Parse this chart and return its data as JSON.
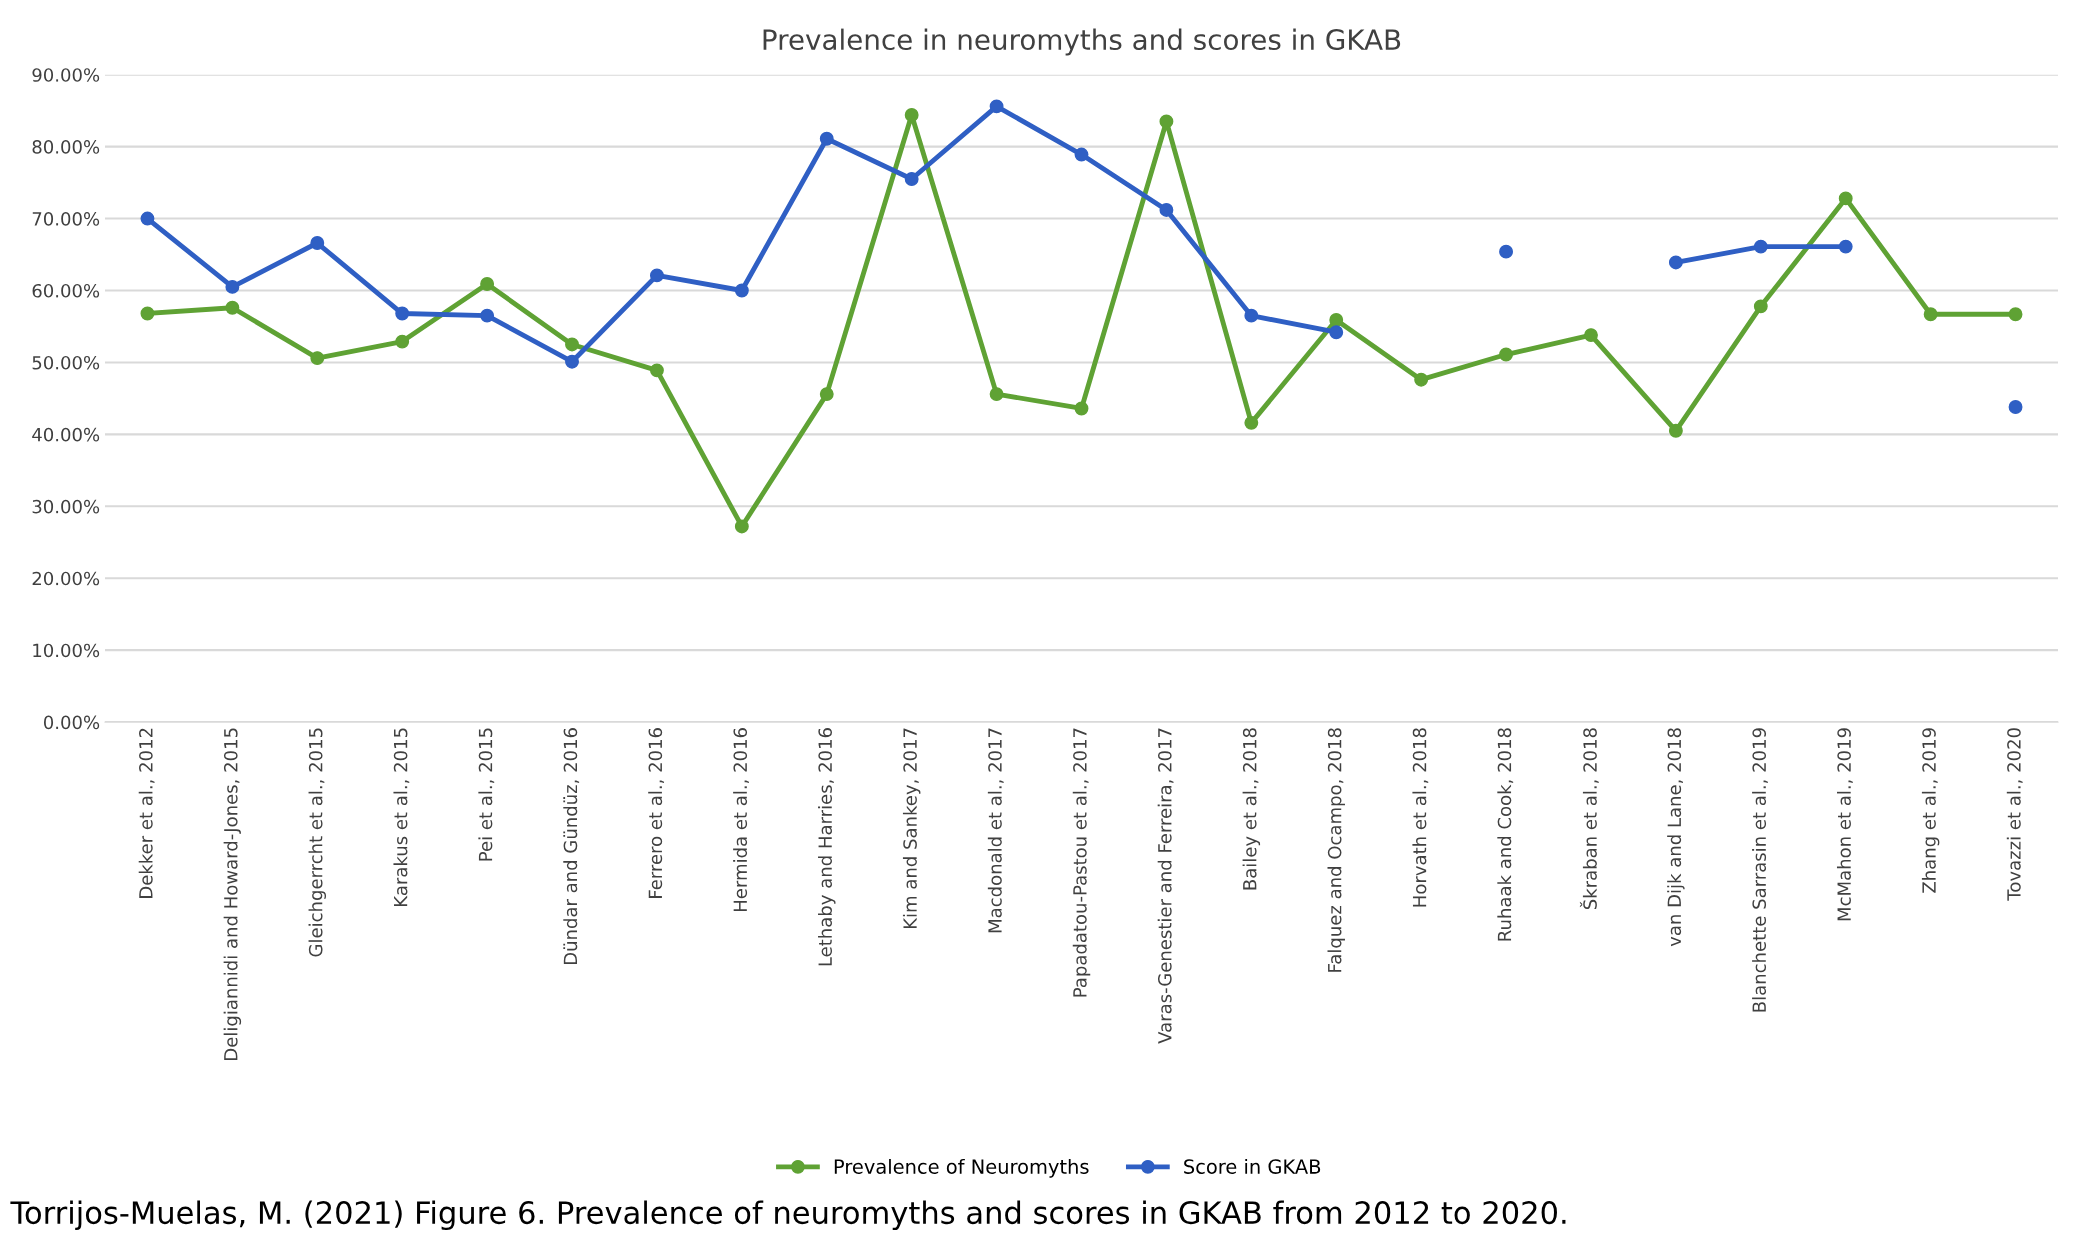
{
  "chart_data": {
    "type": "line",
    "title": "Prevalence in neuromyths and scores in GKAB",
    "categories": [
      "Dekker et al., 2012",
      "Deligiannidi and Howard-Jones, 2015",
      "Gleichgerrcht et al., 2015",
      "Karakus et al., 2015",
      "Pei et al., 2015",
      "Dündar and Gündüz, 2016",
      "Ferrero et al., 2016",
      "Hermida et al., 2016",
      "Lethaby and Harries, 2016",
      "Kim and Sankey, 2017",
      "Macdonald et al., 2017",
      "Papadatou-Pastou et al., 2017",
      "Varas-Genestier and Ferreira, 2017",
      "Bailey et al., 2018",
      "Falquez and Ocampo, 2018",
      "Horvath et al., 2018",
      "Ruhaak and Cook, 2018",
      "Škraban et al., 2018",
      "van Dijk and Lane, 2018",
      "Blanchette Sarrasin et al., 2019",
      "McMahon et al., 2019",
      "Zhang et al., 2019",
      "Tovazzi et al., 2020"
    ],
    "series": [
      {
        "name": "Prevalence of Neuromyths",
        "color": "#5fa234",
        "values": [
          56.8,
          57.6,
          50.6,
          52.9,
          60.9,
          52.5,
          48.9,
          27.2,
          45.6,
          84.4,
          45.6,
          43.6,
          83.5,
          41.6,
          55.9,
          47.6,
          51.1,
          53.8,
          40.5,
          57.8,
          72.8,
          56.7,
          56.7
        ]
      },
      {
        "name": "Score in GKAB",
        "color": "#2f5fc4",
        "values": [
          70.0,
          60.5,
          66.6,
          56.8,
          56.5,
          50.1,
          62.1,
          60.0,
          81.1,
          75.5,
          85.6,
          78.9,
          71.2,
          56.5,
          54.2,
          null,
          65.4,
          null,
          63.9,
          66.1,
          66.1,
          null,
          43.8
        ]
      }
    ],
    "ylim": [
      0,
      90
    ],
    "yticks": [
      {
        "value": 0,
        "label": "0.00%"
      },
      {
        "value": 10,
        "label": "10.00%"
      },
      {
        "value": 20,
        "label": "20.00%"
      },
      {
        "value": 30,
        "label": "30.00%"
      },
      {
        "value": 40,
        "label": "40.00%"
      },
      {
        "value": 50,
        "label": "50.00%"
      },
      {
        "value": 60,
        "label": "60.00%"
      },
      {
        "value": 70,
        "label": "70.00%"
      },
      {
        "value": 80,
        "label": "80.00%"
      },
      {
        "value": 90,
        "label": "90.00%"
      }
    ],
    "grid": "y",
    "legend": "bottom",
    "marker": "circle",
    "line_style": "solid",
    "annotations": [
      "Torrijos-Muelas, M. (2021) Figure 6. Prevalence of neuromyths and scores in GKAB from 2012 to 2020."
    ]
  }
}
